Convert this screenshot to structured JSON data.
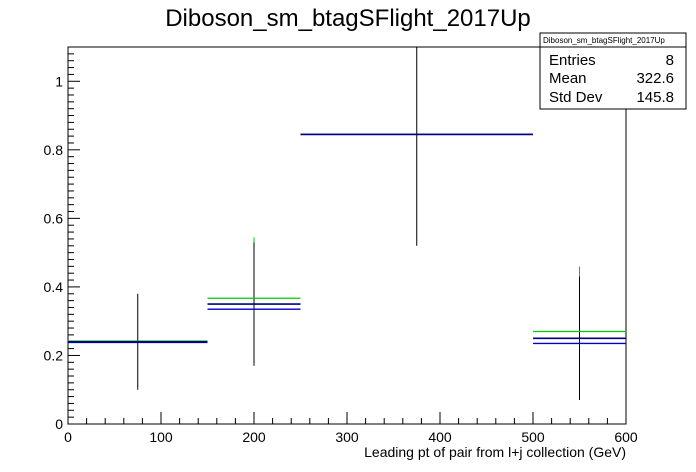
{
  "chart_data": {
    "type": "histogram",
    "title": "Diboson_sm_btagSFlight_2017Up",
    "xlabel": "Leading pt of pair from l+j collection (GeV)",
    "ylabel": "",
    "xlim": [
      0,
      600
    ],
    "ylim": [
      0,
      1.1
    ],
    "x_ticks": [
      0,
      100,
      200,
      300,
      400,
      500,
      600
    ],
    "y_ticks": [
      0,
      0.2,
      0.4,
      0.6,
      0.8,
      1
    ],
    "bins": [
      {
        "low": 0,
        "high": 150,
        "center": 75,
        "nominal": 0.24,
        "up": 0.242,
        "down": 0.238,
        "err_low": 0.1,
        "err_high": 0.38,
        "up_err_high": 0.38
      },
      {
        "low": 150,
        "high": 250,
        "center": 200,
        "nominal": 0.35,
        "up": 0.367,
        "down": 0.335,
        "err_low": 0.17,
        "err_high": 0.53,
        "up_err_high": 0.545
      },
      {
        "low": 250,
        "high": 500,
        "center": 375,
        "nominal": 0.845,
        "up": 0.845,
        "down": 0.845,
        "err_low": 0.52,
        "err_high": 1.1,
        "up_err_high": 1.1
      },
      {
        "low": 500,
        "high": 600,
        "center": 550,
        "nominal": 0.25,
        "up": 0.27,
        "down": 0.235,
        "err_low": 0.07,
        "err_high": 0.43,
        "up_err_high": 0.46
      }
    ],
    "colors": {
      "nominal": "#000000",
      "up": "#00cc00",
      "down": "#0000cc",
      "nominal_line": "#000080"
    },
    "stats_box": {
      "title": "Diboson_sm_btagSFlight_2017Up",
      "rows": [
        {
          "label": "Entries",
          "value": "8"
        },
        {
          "label": "Mean",
          "value": "322.6"
        },
        {
          "label": "Std Dev",
          "value": "145.8"
        }
      ]
    }
  }
}
